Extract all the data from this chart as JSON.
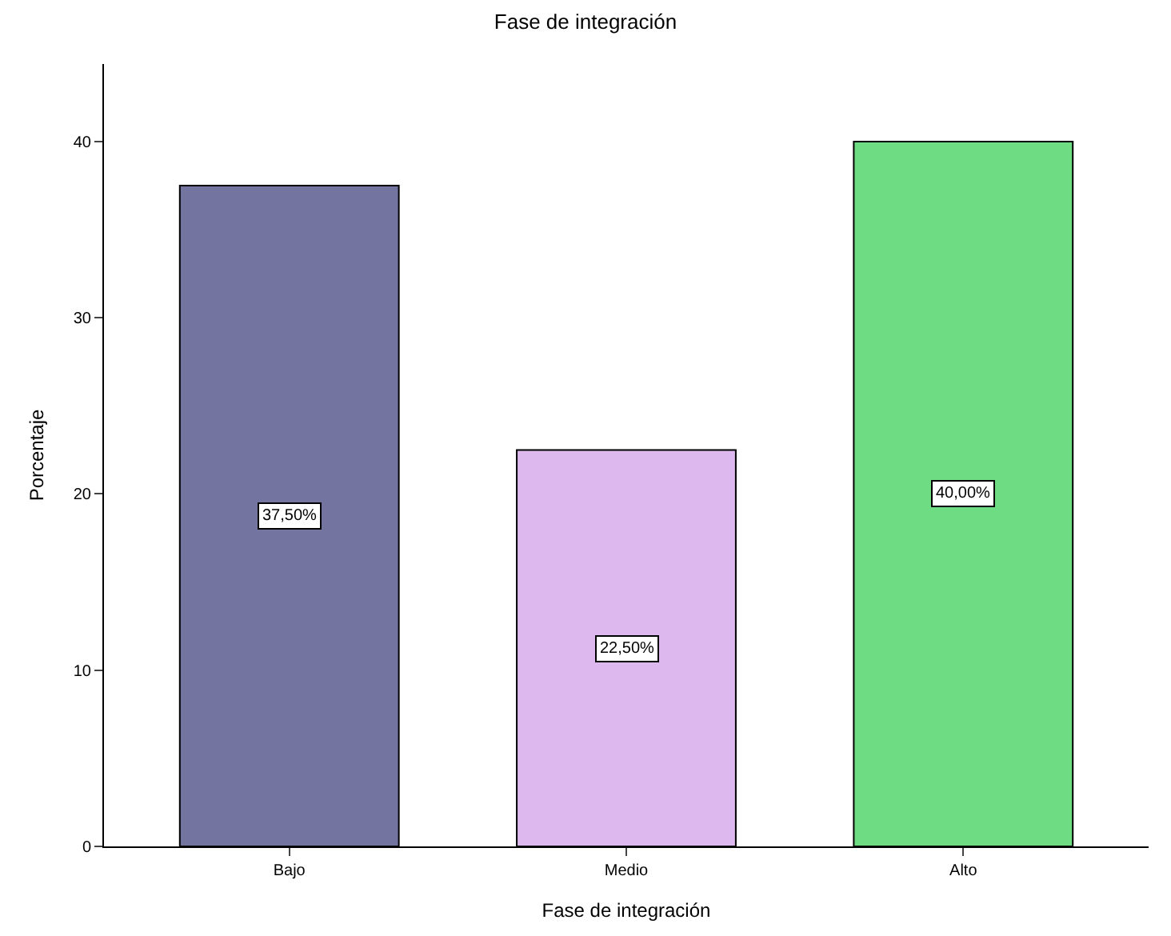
{
  "chart_data": {
    "type": "bar",
    "title": "Fase de integración",
    "xlabel": "Fase de integración",
    "ylabel": "Porcentaje",
    "categories": [
      "Bajo",
      "Medio",
      "Alto"
    ],
    "values": [
      37.5,
      22.5,
      40.0
    ],
    "colors": [
      "#7474a0",
      "#dcb8ee",
      "#6edc82"
    ],
    "value_labels": [
      "37,50%",
      "22,50%",
      "40,00%"
    ],
    "ylim": [
      0,
      44.4
    ],
    "yticks": [
      0,
      10,
      20,
      30,
      40
    ]
  }
}
